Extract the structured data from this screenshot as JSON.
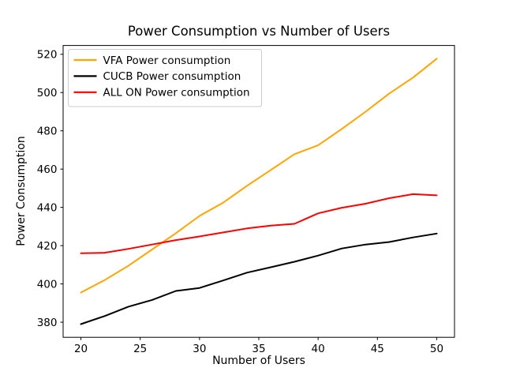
{
  "figure": {
    "background": "#ffffff",
    "spine_color": "#000000",
    "legend_border_color": "#cccccc",
    "legend_background": "#ffffff"
  },
  "chart_data": {
    "type": "line",
    "title": "Power Consumption vs Number of Users",
    "xlabel": "Number of Users",
    "ylabel": "Power Consumption",
    "x": [
      20,
      22,
      24,
      26,
      28,
      30,
      32,
      34,
      36,
      38,
      40,
      42,
      44,
      46,
      48,
      50
    ],
    "series": [
      {
        "name": "VFA Power consumption",
        "color": "#ffa500",
        "values": [
          395.5,
          402.0,
          409.5,
          418.0,
          426.5,
          435.5,
          442.5,
          451.3,
          459.5,
          467.8,
          472.5,
          481.0,
          490.0,
          499.5,
          507.8,
          517.7
        ]
      },
      {
        "name": "CUCB Power consumption",
        "color": "#000000",
        "values": [
          379.0,
          383.2,
          388.1,
          391.6,
          396.3,
          397.9,
          401.8,
          405.9,
          408.7,
          411.6,
          414.8,
          418.5,
          420.6,
          421.9,
          424.3,
          426.3
        ]
      },
      {
        "name": "ALL ON Power consumption",
        "color": "#ff0000",
        "values": [
          416.0,
          416.3,
          418.3,
          420.6,
          422.9,
          424.8,
          426.9,
          429.0,
          430.5,
          431.4,
          436.9,
          439.8,
          441.9,
          444.8,
          446.9,
          446.3
        ]
      }
    ],
    "xticks": [
      20,
      25,
      30,
      35,
      40,
      45,
      50
    ],
    "yticks": [
      380,
      400,
      420,
      440,
      460,
      480,
      500,
      520
    ],
    "xlim": [
      18.5,
      51.5
    ],
    "ylim": [
      372.1,
      524.6
    ],
    "grid": false,
    "legend_position": "upper-left"
  }
}
